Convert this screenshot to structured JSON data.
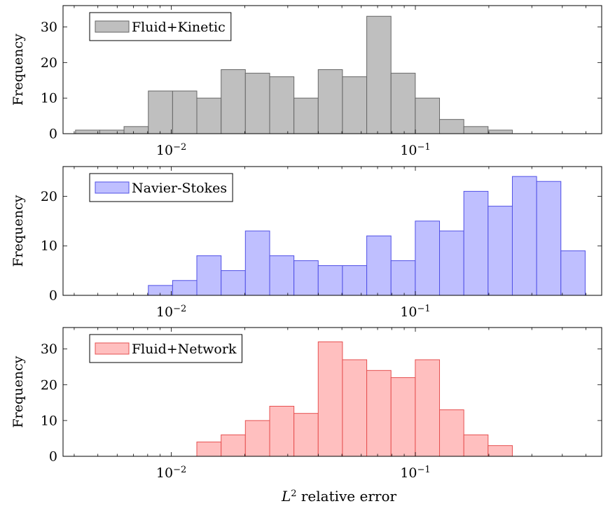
{
  "chart_data": {
    "type": "bar",
    "xlabel_base": "L",
    "xlabel_sup": "2",
    "xlabel_rest": " relative error",
    "xscale": "log",
    "xlim": [
      0.0036,
      0.58
    ],
    "xtick_labels": [
      {
        "value": 0.01,
        "base": "10",
        "exp": "−2"
      },
      {
        "value": 0.1,
        "base": "10",
        "exp": "−1"
      }
    ],
    "legend_placement": "top-left",
    "panels": [
      {
        "name": "Fluid+Kinetic",
        "ylabel": "Frequency",
        "ylim": [
          0,
          36
        ],
        "yticks": [
          0,
          10,
          20,
          30
        ],
        "fill": "#bfbfbf",
        "stroke": "#666666",
        "bins": [
          {
            "x0": 0.00405,
            "x1": 0.00509,
            "y": 1
          },
          {
            "x0": 0.00509,
            "x1": 0.0064,
            "y": 1
          },
          {
            "x0": 0.0064,
            "x1": 0.00805,
            "y": 2
          },
          {
            "x0": 0.00805,
            "x1": 0.01012,
            "y": 12
          },
          {
            "x0": 0.01012,
            "x1": 0.01272,
            "y": 12
          },
          {
            "x0": 0.01272,
            "x1": 0.016,
            "y": 10
          },
          {
            "x0": 0.016,
            "x1": 0.02011,
            "y": 18
          },
          {
            "x0": 0.02011,
            "x1": 0.02529,
            "y": 17
          },
          {
            "x0": 0.02529,
            "x1": 0.0318,
            "y": 16
          },
          {
            "x0": 0.0318,
            "x1": 0.03998,
            "y": 10
          },
          {
            "x0": 0.03998,
            "x1": 0.05026,
            "y": 18
          },
          {
            "x0": 0.05026,
            "x1": 0.0632,
            "y": 16
          },
          {
            "x0": 0.0632,
            "x1": 0.07946,
            "y": 33
          },
          {
            "x0": 0.07946,
            "x1": 0.09991,
            "y": 17
          },
          {
            "x0": 0.09991,
            "x1": 0.12562,
            "y": 10
          },
          {
            "x0": 0.12562,
            "x1": 0.15794,
            "y": 4
          },
          {
            "x0": 0.15794,
            "x1": 0.19858,
            "y": 2
          },
          {
            "x0": 0.19858,
            "x1": 0.24968,
            "y": 1
          }
        ]
      },
      {
        "name": "Navier-Stokes",
        "ylabel": "Frequency",
        "ylim": [
          0,
          26
        ],
        "yticks": [
          0,
          10,
          20
        ],
        "fill": "#bfbfff",
        "stroke": "#5050e6",
        "bins": [
          {
            "x0": 0.00805,
            "x1": 0.01012,
            "y": 2
          },
          {
            "x0": 0.01012,
            "x1": 0.01272,
            "y": 3
          },
          {
            "x0": 0.01272,
            "x1": 0.016,
            "y": 8
          },
          {
            "x0": 0.016,
            "x1": 0.02011,
            "y": 5
          },
          {
            "x0": 0.02011,
            "x1": 0.02529,
            "y": 13
          },
          {
            "x0": 0.02529,
            "x1": 0.0318,
            "y": 8
          },
          {
            "x0": 0.0318,
            "x1": 0.03998,
            "y": 7
          },
          {
            "x0": 0.03998,
            "x1": 0.05026,
            "y": 6
          },
          {
            "x0": 0.05026,
            "x1": 0.0632,
            "y": 6
          },
          {
            "x0": 0.0632,
            "x1": 0.07946,
            "y": 12
          },
          {
            "x0": 0.07946,
            "x1": 0.09991,
            "y": 7
          },
          {
            "x0": 0.09991,
            "x1": 0.12562,
            "y": 15
          },
          {
            "x0": 0.12562,
            "x1": 0.15794,
            "y": 13
          },
          {
            "x0": 0.15794,
            "x1": 0.19858,
            "y": 21
          },
          {
            "x0": 0.19858,
            "x1": 0.24968,
            "y": 18
          },
          {
            "x0": 0.24968,
            "x1": 0.31392,
            "y": 24
          },
          {
            "x0": 0.31392,
            "x1": 0.3947,
            "y": 23
          },
          {
            "x0": 0.3947,
            "x1": 0.49626,
            "y": 9
          }
        ]
      },
      {
        "name": "Fluid+Network",
        "ylabel": "Frequency",
        "ylim": [
          0,
          36
        ],
        "yticks": [
          0,
          10,
          20,
          30
        ],
        "fill": "#ffbfbf",
        "stroke": "#e65050",
        "bins": [
          {
            "x0": 0.01272,
            "x1": 0.016,
            "y": 4
          },
          {
            "x0": 0.016,
            "x1": 0.02011,
            "y": 6
          },
          {
            "x0": 0.02011,
            "x1": 0.02529,
            "y": 10
          },
          {
            "x0": 0.02529,
            "x1": 0.0318,
            "y": 14
          },
          {
            "x0": 0.0318,
            "x1": 0.03998,
            "y": 12
          },
          {
            "x0": 0.03998,
            "x1": 0.05026,
            "y": 32
          },
          {
            "x0": 0.05026,
            "x1": 0.0632,
            "y": 27
          },
          {
            "x0": 0.0632,
            "x1": 0.07946,
            "y": 24
          },
          {
            "x0": 0.07946,
            "x1": 0.09991,
            "y": 22
          },
          {
            "x0": 0.09991,
            "x1": 0.12562,
            "y": 27
          },
          {
            "x0": 0.12562,
            "x1": 0.15794,
            "y": 13
          },
          {
            "x0": 0.15794,
            "x1": 0.19858,
            "y": 6
          },
          {
            "x0": 0.19858,
            "x1": 0.24968,
            "y": 3
          }
        ]
      }
    ]
  }
}
